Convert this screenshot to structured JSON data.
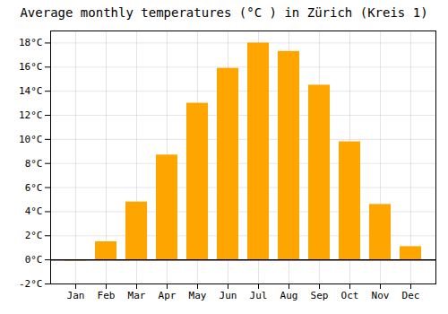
{
  "chart_data": {
    "type": "bar",
    "title": "Average monthly temperatures (°C ) in Zürich (Kreis 1)",
    "categories": [
      "Jan",
      "Feb",
      "Mar",
      "Apr",
      "May",
      "Jun",
      "Jul",
      "Aug",
      "Sep",
      "Oct",
      "Nov",
      "Dec"
    ],
    "values": [
      -0.1,
      1.5,
      4.8,
      8.7,
      13.0,
      15.9,
      18.0,
      17.3,
      14.5,
      9.8,
      4.6,
      1.1
    ],
    "color": "#FFA500",
    "ylim": [
      -2,
      19
    ],
    "yticks": [
      {
        "value": -2,
        "label": "-2°C"
      },
      {
        "value": 0,
        "label": "0°C"
      },
      {
        "value": 2,
        "label": "2°C"
      },
      {
        "value": 4,
        "label": "4°C"
      },
      {
        "value": 6,
        "label": "6°C"
      },
      {
        "value": 8,
        "label": "8°C"
      },
      {
        "value": 10,
        "label": "10°C"
      },
      {
        "value": 12,
        "label": "12°C"
      },
      {
        "value": 14,
        "label": "14°C"
      },
      {
        "value": 16,
        "label": "16°C"
      },
      {
        "value": 18,
        "label": "18°C"
      }
    ],
    "grid": true
  }
}
